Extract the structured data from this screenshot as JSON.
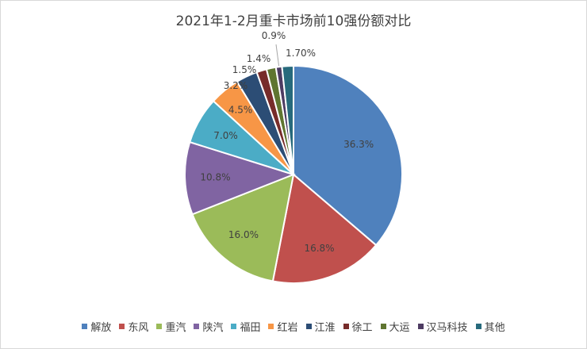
{
  "chart_data": {
    "type": "pie",
    "title": "2021年1-2月重卡市场前10强份额对比",
    "categories": [
      "解放",
      "东风",
      "重汽",
      "陕汽",
      "福田",
      "红岩",
      "江淮",
      "徐工",
      "大运",
      "汉马科技",
      "其他"
    ],
    "values": [
      36.3,
      16.8,
      16.0,
      10.8,
      7.0,
      4.5,
      3.2,
      1.5,
      1.4,
      0.9,
      1.7
    ],
    "labels": [
      "36.3%",
      "16.8%",
      "16.0%",
      "10.8%",
      "7.0%",
      "4.5%",
      "3.2%",
      "1.5%",
      "1.4%",
      "0.9%",
      "1.70%"
    ],
    "colors": [
      "#4f81bd",
      "#c0504d",
      "#9bbb59",
      "#8064a2",
      "#4bacc6",
      "#f79646",
      "#2c4d75",
      "#772c2a",
      "#5f7530",
      "#4d3b62",
      "#276a7c"
    ],
    "legend_position": "bottom"
  }
}
